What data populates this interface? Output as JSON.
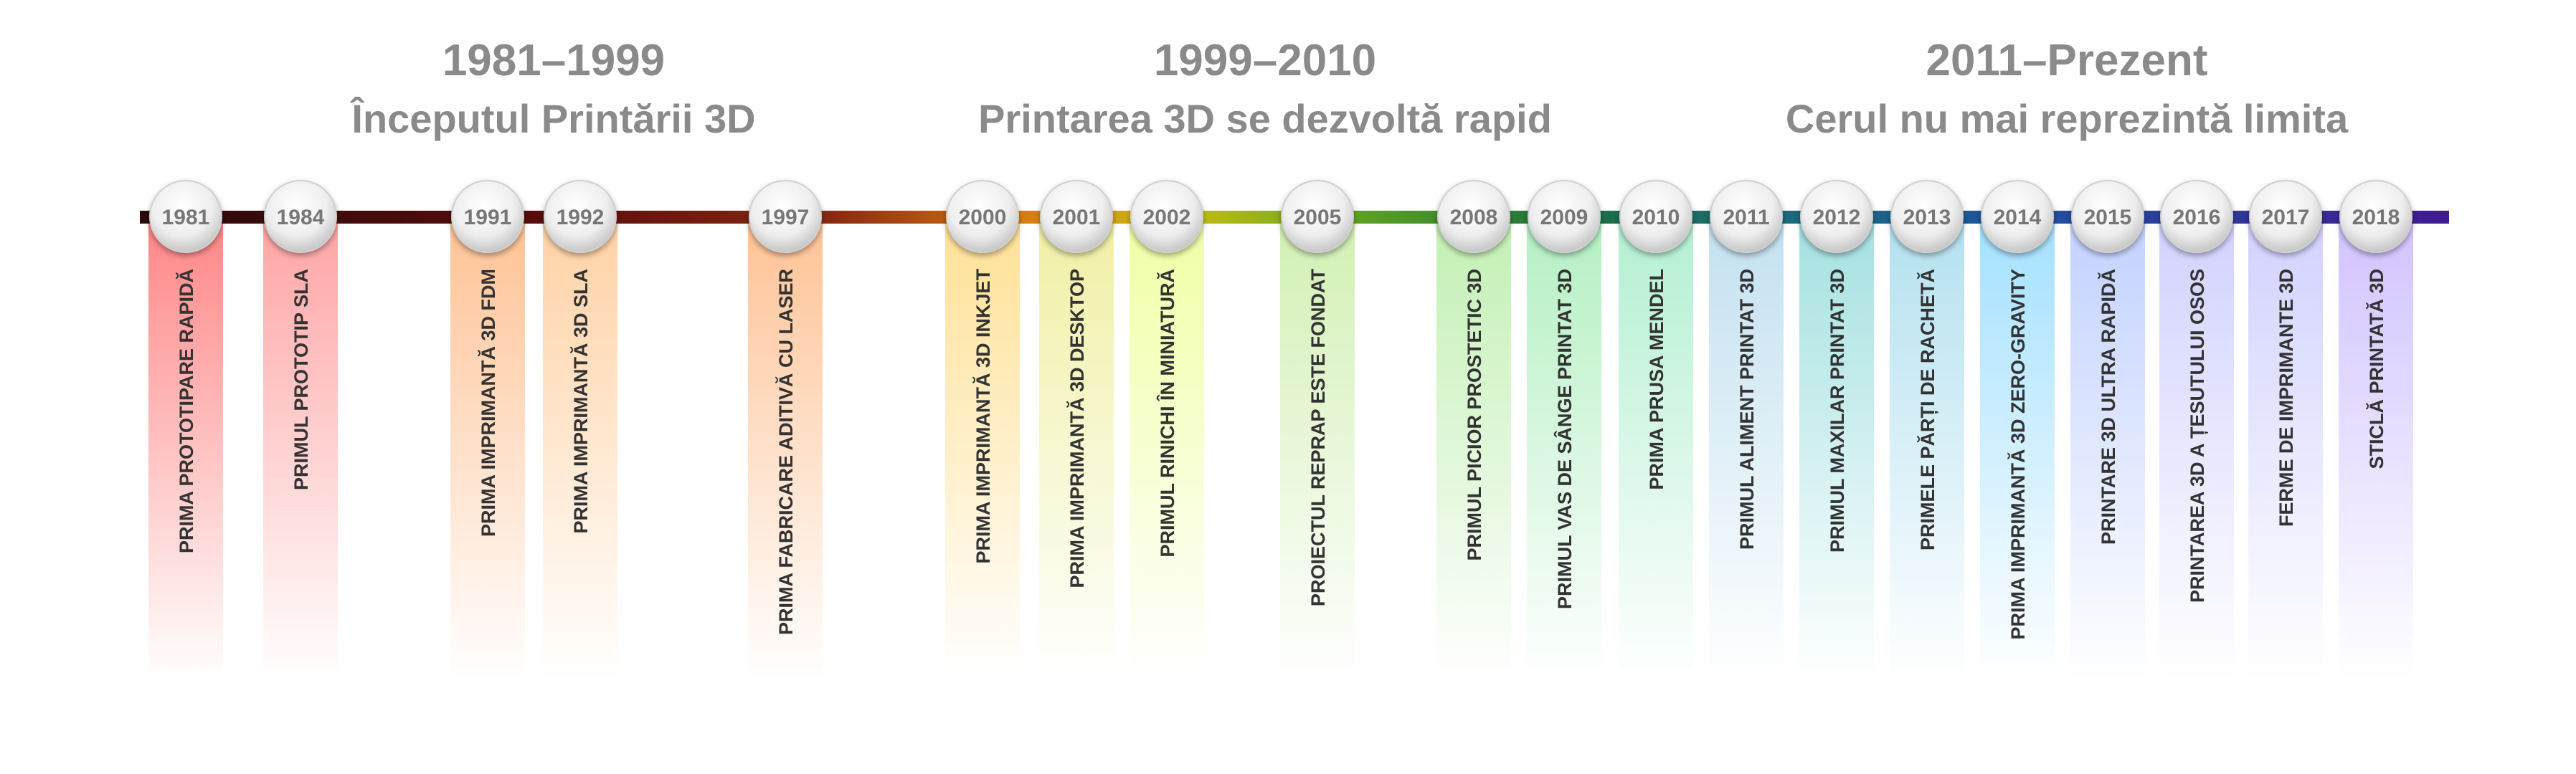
{
  "eras": [
    {
      "title": "1981–1999",
      "subtitle": "Începutul Printării 3D"
    },
    {
      "title": "1999–2010",
      "subtitle": "Printarea 3D se dezvoltă rapid"
    },
    {
      "title": "2011–Prezent",
      "subtitle": "Cerul nu mai reprezintă limita"
    }
  ],
  "events": [
    {
      "year": "1981",
      "label": "PRIMA PROTOTIPARE RAPIDĂ"
    },
    {
      "year": "1984",
      "label": "PRIMUL PROTOTIP SLA"
    },
    {
      "year": "1991",
      "label": "PRIMA IMPRIMANTĂ 3D FDM"
    },
    {
      "year": "1992",
      "label": "PRIMA IMPRIMANTĂ 3D SLA"
    },
    {
      "year": "1997",
      "label": "PRIMA FABRICARE ADITIVĂ CU LASER"
    },
    {
      "year": "2000",
      "label": "PRIMA IMPRIMANTĂ 3D INKJET"
    },
    {
      "year": "2001",
      "label": "PRIMA IMPRIMANTĂ 3D DESKTOP"
    },
    {
      "year": "2002",
      "label": "PRIMUL RINICHI ÎN MINIATURĂ"
    },
    {
      "year": "2005",
      "label": "PROIECTUL REPRAP ESTE FONDAT"
    },
    {
      "year": "2008",
      "label": "PRIMUL PICIOR PROSTETIC 3D"
    },
    {
      "year": "2009",
      "label": "PRIMUL VAS DE SÂNGE PRINTAT 3D"
    },
    {
      "year": "2010",
      "label": "PRIMA PRUSA MENDEL"
    },
    {
      "year": "2011",
      "label": "PRIMUL ALIMENT PRINTAT 3D"
    },
    {
      "year": "2012",
      "label": "PRIMUL MAXILAR PRINTAT 3D"
    },
    {
      "year": "2013",
      "label": "PRIMELE PĂRȚI DE RACHETĂ"
    },
    {
      "year": "2014",
      "label": "PRIMA IMPRIMANTĂ 3D ZERO-GRAVITY"
    },
    {
      "year": "2015",
      "label": "PRINTARE 3D ULTRA RAPIDĂ"
    },
    {
      "year": "2016",
      "label": "PRINTAREA 3D A ȚESUTULUI OSOS"
    },
    {
      "year": "2017",
      "label": "FERME DE IMPRIMANTE 3D"
    },
    {
      "year": "2018",
      "label": "STICLĂ PRINTATĂ 3D"
    }
  ]
}
